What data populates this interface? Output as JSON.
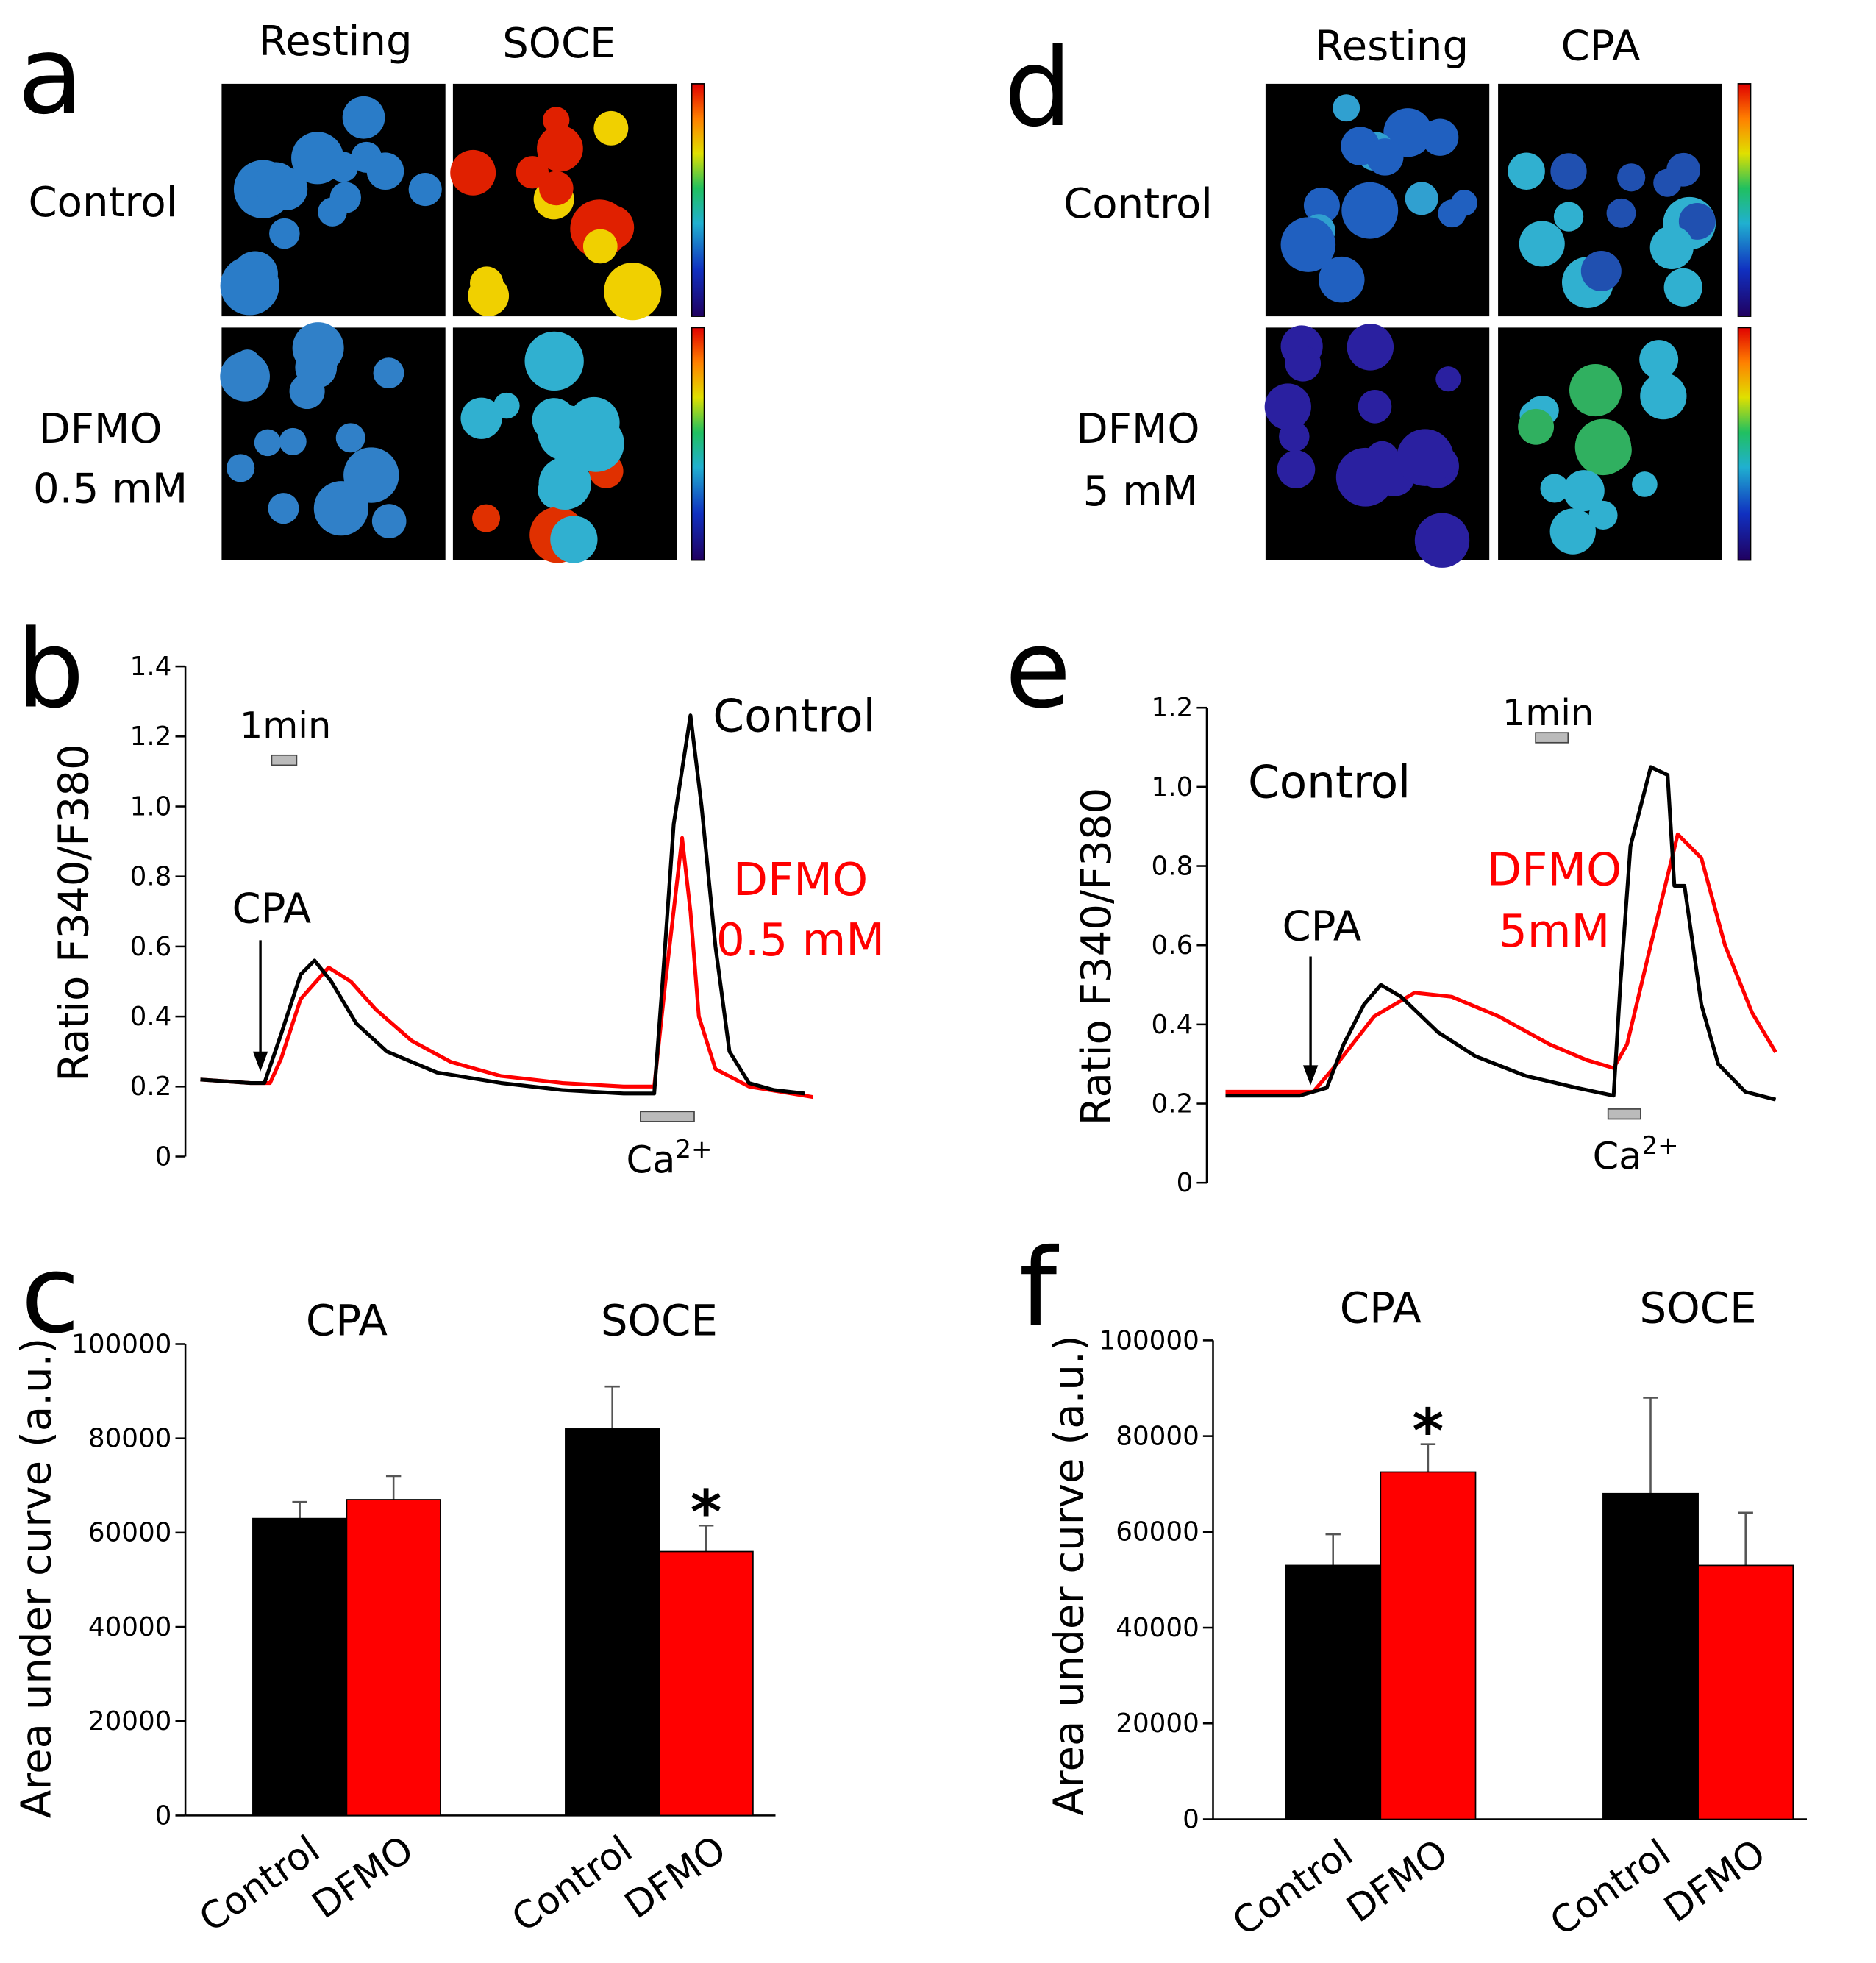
{
  "image_panels": [
    {
      "letter": "a",
      "columns": [
        "Resting",
        "SOCE"
      ],
      "rows": [
        [
          "Control"
        ],
        [
          "DFMO",
          "0.5 mM"
        ]
      ]
    },
    {
      "letter": "d",
      "columns": [
        "Resting",
        "CPA"
      ],
      "rows": [
        [
          "Control"
        ],
        [
          "DFMO",
          "5 mM"
        ]
      ]
    }
  ],
  "chart_data": [
    {
      "type": "line",
      "panel": "b",
      "ylabel": "Ratio F340/F380",
      "ylim": [
        0,
        1.4
      ],
      "yticks": [
        0,
        0.2,
        0.4,
        0.6,
        0.8,
        {
          "value": 1,
          "label": "1.0"
        },
        1.2,
        1.4
      ],
      "xlim": [
        0,
        22
      ],
      "series": [
        {
          "name": "Control",
          "color": "#000000",
          "x": [
            0,
            1.8,
            2.3,
            2.9,
            3.6,
            4.1,
            4.7,
            5.6,
            6.7,
            8.5,
            10.8,
            13.0,
            15.2,
            16.3,
            16.6,
            17.0,
            17.6,
            18.0,
            18.5,
            19.0,
            19.7,
            20.6,
            21.7
          ],
          "values": [
            0.22,
            0.21,
            0.21,
            0.35,
            0.52,
            0.56,
            0.5,
            0.38,
            0.3,
            0.24,
            0.21,
            0.19,
            0.18,
            0.18,
            0.5,
            0.95,
            1.26,
            1.0,
            0.6,
            0.3,
            0.21,
            0.19,
            0.18
          ]
        },
        {
          "name": "DFMO 0.5 mM",
          "color": "#ff0000",
          "x": [
            0,
            1.8,
            2.5,
            2.9,
            3.6,
            4.6,
            5.4,
            6.3,
            7.6,
            9.0,
            10.8,
            13.0,
            15.2,
            16.3,
            16.7,
            17.3,
            17.6,
            17.9,
            18.5,
            19.7,
            22.0
          ],
          "values": [
            0.22,
            0.21,
            0.21,
            0.28,
            0.45,
            0.54,
            0.5,
            0.42,
            0.33,
            0.27,
            0.23,
            0.21,
            0.2,
            0.2,
            0.5,
            0.91,
            0.7,
            0.4,
            0.25,
            0.2,
            0.17
          ]
        }
      ],
      "annotations": {
        "scale": "1min",
        "stimulus": "CPA",
        "control_label": "Control",
        "treatment_label": [
          "DFMO",
          "0.5 mM"
        ],
        "ion": {
          "base": "Ca",
          "sup": "2+"
        }
      }
    },
    {
      "type": "bar",
      "panel": "c",
      "ylabel": "Area under curve (a.u.)",
      "groups": [
        "CPA",
        "SOCE"
      ],
      "categories": [
        "Control",
        "DFMO",
        "Control",
        "DFMO"
      ],
      "values": [
        63000,
        67000,
        82000,
        56000
      ],
      "errors": [
        3500,
        5000,
        9000,
        5500
      ],
      "colors": [
        "#000000",
        "#ff0000",
        "#000000",
        "#ff0000"
      ],
      "ylim": [
        0,
        100000
      ],
      "yticks": [
        0,
        20000,
        40000,
        60000,
        80000,
        100000
      ],
      "significance": [
        {
          "index": 3,
          "label": "*"
        }
      ]
    },
    {
      "type": "line",
      "panel": "e",
      "ylabel": "Ratio F340/F380",
      "ylim": [
        0,
        1.2
      ],
      "yticks": [
        0,
        0.2,
        0.4,
        0.6,
        0.8,
        {
          "value": 1,
          "label": "1.0"
        },
        1.2
      ],
      "xlim": [
        0,
        16.3
      ],
      "series": [
        {
          "name": "Control",
          "color": "#000000",
          "x": [
            0,
            2.2,
            3.0,
            3.5,
            4.1,
            4.6,
            5.2,
            6.3,
            7.4,
            8.9,
            10.4,
            11.5,
            11.7,
            12.0,
            12.6,
            13.1,
            13.3,
            13.6,
            14.1,
            14.6,
            15.4,
            16.3
          ],
          "values": [
            0.22,
            0.22,
            0.24,
            0.35,
            0.45,
            0.5,
            0.47,
            0.38,
            0.32,
            0.27,
            0.24,
            0.22,
            0.5,
            0.85,
            1.05,
            1.03,
            0.75,
            0.75,
            0.45,
            0.3,
            0.23,
            0.21
          ]
        },
        {
          "name": "DFMO 5mM",
          "color": "#ff0000",
          "x": [
            0,
            2.6,
            3.3,
            4.4,
            5.6,
            6.7,
            8.1,
            9.6,
            10.7,
            11.5,
            11.9,
            12.6,
            13.4,
            14.1,
            14.8,
            15.6,
            16.3
          ],
          "values": [
            0.23,
            0.23,
            0.3,
            0.42,
            0.48,
            0.47,
            0.42,
            0.35,
            0.31,
            0.29,
            0.35,
            0.6,
            0.88,
            0.82,
            0.6,
            0.43,
            0.33
          ]
        }
      ],
      "annotations": {
        "scale": "1min",
        "stimulus": "CPA",
        "control_label": "Control",
        "treatment_label": [
          "DFMO",
          "5mM"
        ],
        "ion": {
          "base": "Ca",
          "sup": "2+"
        }
      }
    },
    {
      "type": "bar",
      "panel": "f",
      "ylabel": "Area under curve (a.u.)",
      "groups": [
        "CPA",
        "SOCE"
      ],
      "categories": [
        "Control",
        "DFMO",
        "Control",
        "DFMO"
      ],
      "values": [
        53000,
        72500,
        68000,
        53000
      ],
      "errors": [
        6500,
        5800,
        20000,
        11000
      ],
      "colors": [
        "#000000",
        "#ff0000",
        "#000000",
        "#ff0000"
      ],
      "ylim": [
        0,
        100000
      ],
      "yticks": [
        0,
        20000,
        40000,
        60000,
        80000,
        100000
      ],
      "significance": [
        {
          "index": 1,
          "label": "*"
        }
      ]
    }
  ]
}
